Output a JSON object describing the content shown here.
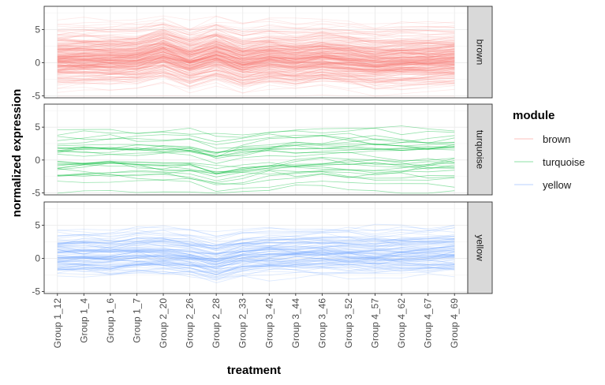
{
  "chart_data": {
    "type": "line",
    "xlabel": "treatment",
    "ylabel": "normalized expression",
    "categories": [
      "Group 1_12",
      "Group 1_4",
      "Group 1_6",
      "Group 1_7",
      "Group 2_20",
      "Group 2_26",
      "Group 2_28",
      "Group 2_33",
      "Group 3_42",
      "Group 3_44",
      "Group 3_46",
      "Group 3_52",
      "Group 4_57",
      "Group 4_62",
      "Group 4_67",
      "Group 4_69"
    ],
    "ylim": [
      -5.3,
      8.5
    ],
    "yticks": [
      -5,
      0,
      5
    ],
    "facets": [
      "brown",
      "turquoise",
      "yellow"
    ],
    "grid": true,
    "legend": {
      "title": "module",
      "placement": "right",
      "entries": [
        {
          "name": "brown",
          "color": "#F8766D"
        },
        {
          "name": "turquoise",
          "color": "#00BA38"
        },
        {
          "name": "yellow",
          "color": "#619CFF"
        }
      ]
    },
    "series": [
      {
        "module": "brown",
        "color": "#F8766D",
        "line_count": 260,
        "sd": 2.0,
        "values": [
          0.5,
          0.6,
          0.6,
          0.7,
          1.6,
          0.3,
          1.4,
          0.2,
          0.8,
          0.5,
          0.9,
          0.6,
          0.2,
          0.4,
          0.5,
          0.6
        ]
      },
      {
        "module": "turquoise",
        "color": "#00BA38",
        "line_count": 30,
        "sd": 2.2,
        "values": [
          0.0,
          0.1,
          0.2,
          0.2,
          0.1,
          0.0,
          -0.8,
          -0.3,
          0.0,
          0.2,
          0.3,
          0.3,
          0.1,
          0.1,
          0.2,
          0.3
        ]
      },
      {
        "module": "yellow",
        "color": "#619CFF",
        "line_count": 90,
        "sd": 1.7,
        "values": [
          0.3,
          0.4,
          0.3,
          0.6,
          0.5,
          0.2,
          -0.6,
          0.3,
          0.5,
          0.6,
          0.7,
          0.6,
          0.5,
          0.6,
          0.6,
          0.8
        ]
      }
    ]
  }
}
